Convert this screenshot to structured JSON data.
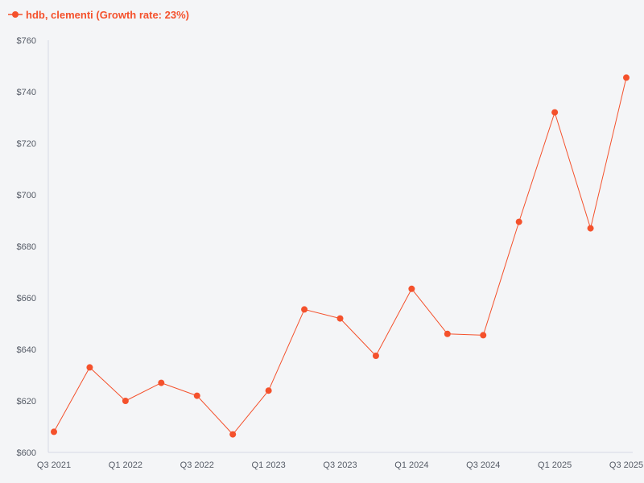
{
  "chart_data": {
    "type": "line",
    "title": "",
    "xlabel": "",
    "ylabel": "",
    "categories": [
      "Q3 2021",
      "Q4 2021",
      "Q1 2022",
      "Q2 2022",
      "Q3 2022",
      "Q4 2022",
      "Q1 2023",
      "Q2 2023",
      "Q3 2023",
      "Q4 2023",
      "Q1 2024",
      "Q2 2024",
      "Q3 2024",
      "Q4 2024",
      "Q1 2025",
      "Q2 2025",
      "Q3 2025"
    ],
    "x_tick_labels": [
      "Q3 2021",
      "Q1 2022",
      "Q3 2022",
      "Q1 2023",
      "Q3 2023",
      "Q1 2024",
      "Q3 2024",
      "Q1 2025",
      "Q3 2025"
    ],
    "y_tick_labels": [
      "$600",
      "$620",
      "$640",
      "$660",
      "$680",
      "$700",
      "$720",
      "$740",
      "$760"
    ],
    "y_ticks": [
      600,
      620,
      640,
      660,
      680,
      700,
      720,
      740,
      760
    ],
    "ylim": [
      600,
      760
    ],
    "grid": false,
    "legend_position": "top-left",
    "series": [
      {
        "name": "hdb, clementi (Growth rate: 23%)",
        "color": "#f4512c",
        "values": [
          608,
          633,
          620,
          627,
          622,
          607,
          624,
          655.5,
          652,
          637.5,
          663.5,
          646,
          645.5,
          689.5,
          732,
          687,
          745.5
        ]
      }
    ]
  },
  "colors": {
    "series": "#f4512c",
    "axis": "#d6d9e6",
    "tick_text": "#555b66",
    "background": "#f4f5f7"
  }
}
